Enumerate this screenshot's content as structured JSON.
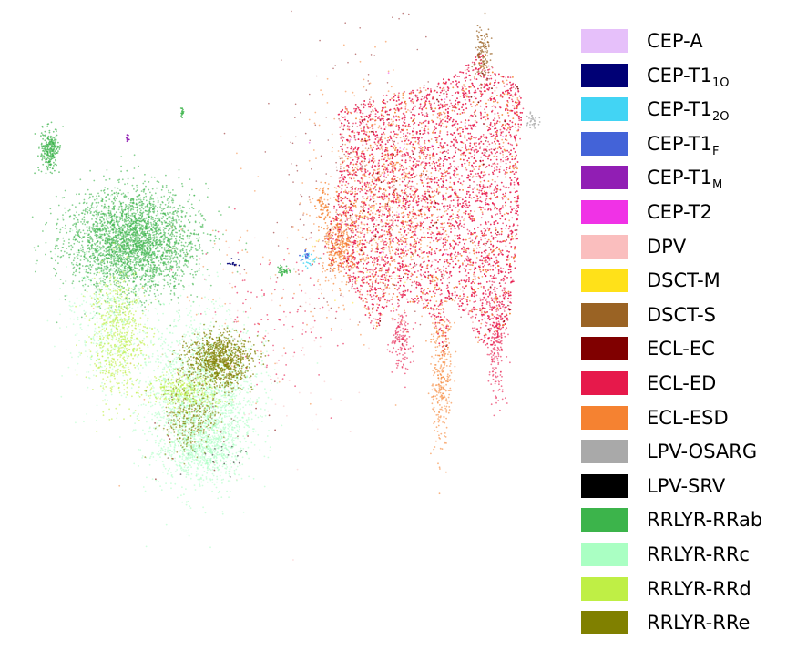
{
  "chart_data": {
    "type": "scatter",
    "title": "",
    "xlabel": "",
    "ylabel": "",
    "axes_visible": false,
    "legend_position": "right",
    "series": [
      {
        "name": "CEP-A",
        "base": "CEP-T1",
        "sub": "",
        "display": "CEP-A",
        "color": "#e6c0fa"
      },
      {
        "name": "CEP-T1_1O",
        "base": "CEP-T1",
        "sub": "1O",
        "color": "#000075"
      },
      {
        "name": "CEP-T1_2O",
        "base": "CEP-T1",
        "sub": "2O",
        "color": "#42d4f4"
      },
      {
        "name": "CEP-T1_F",
        "base": "CEP-T1",
        "sub": "F",
        "color": "#4363d8"
      },
      {
        "name": "CEP-T1_M",
        "base": "CEP-T1",
        "sub": "M",
        "color": "#911eb4"
      },
      {
        "name": "CEP-T2",
        "base": "CEP-T2",
        "sub": "",
        "color": "#f032e6"
      },
      {
        "name": "DPV",
        "base": "DPV",
        "sub": "",
        "color": "#fabebe"
      },
      {
        "name": "DSCT-M",
        "base": "DSCT-M",
        "sub": "",
        "color": "#ffe119"
      },
      {
        "name": "DSCT-S",
        "base": "DSCT-S",
        "sub": "",
        "color": "#9a6324"
      },
      {
        "name": "ECL-EC",
        "base": "ECL-EC",
        "sub": "",
        "color": "#800000"
      },
      {
        "name": "ECL-ED",
        "base": "ECL-ED",
        "sub": "",
        "color": "#e6194b"
      },
      {
        "name": "ECL-ESD",
        "base": "ECL-ESD",
        "sub": "",
        "color": "#f58231"
      },
      {
        "name": "LPV-OSARG",
        "base": "LPV-OSARG",
        "sub": "",
        "color": "#a9a9a9"
      },
      {
        "name": "LPV-SRV",
        "base": "LPV-SRV",
        "sub": "",
        "color": "#000000"
      },
      {
        "name": "RRLYR-RRab",
        "base": "RRLYR-RRab",
        "sub": "",
        "color": "#3cb44b"
      },
      {
        "name": "RRLYR-RRc",
        "base": "RRLYR-RRc",
        "sub": "",
        "color": "#aaffc3"
      },
      {
        "name": "RRLYR-RRd",
        "base": "RRLYR-RRd",
        "sub": "",
        "color": "#bfef45"
      },
      {
        "name": "RRLYR-RRe",
        "base": "RRLYR-RRe",
        "sub": "",
        "color": "#808000"
      }
    ]
  }
}
